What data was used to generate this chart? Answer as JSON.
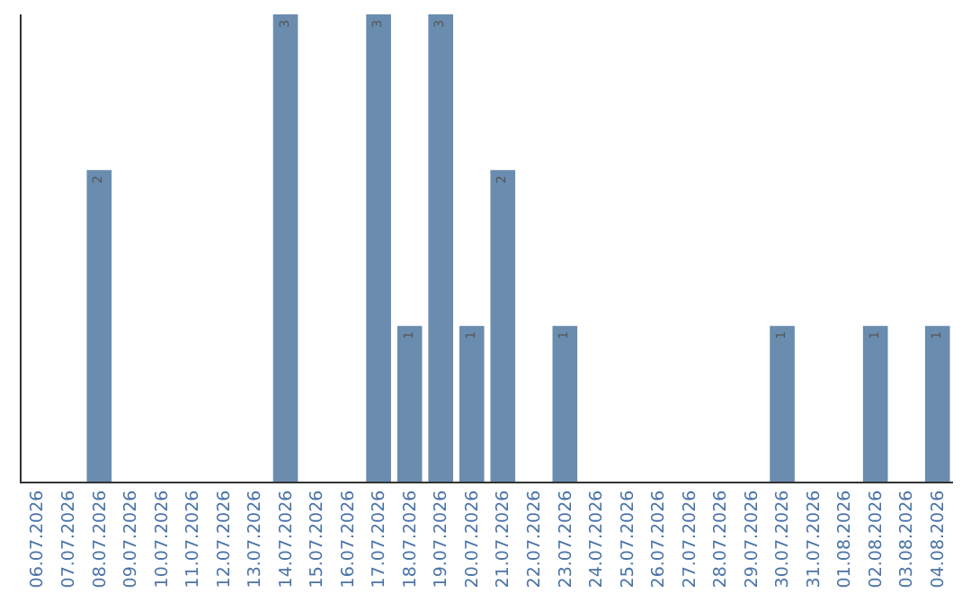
{
  "chart_data": {
    "type": "bar",
    "categories": [
      "06.07.2026",
      "07.07.2026",
      "08.07.2026",
      "09.07.2026",
      "10.07.2026",
      "11.07.2026",
      "12.07.2026",
      "13.07.2026",
      "14.07.2026",
      "15.07.2026",
      "16.07.2026",
      "17.07.2026",
      "18.07.2026",
      "19.07.2026",
      "20.07.2026",
      "21.07.2026",
      "22.07.2026",
      "23.07.2026",
      "24.07.2026",
      "25.07.2026",
      "26.07.2026",
      "27.07.2026",
      "28.07.2026",
      "29.07.2026",
      "30.07.2026",
      "31.07.2026",
      "01.08.2026",
      "02.08.2026",
      "03.08.2026",
      "04.08.2026"
    ],
    "values": [
      0,
      0,
      2,
      0,
      0,
      0,
      0,
      0,
      3,
      0,
      0,
      3,
      1,
      3,
      1,
      2,
      0,
      1,
      0,
      0,
      0,
      0,
      0,
      0,
      1,
      0,
      0,
      1,
      0,
      1
    ],
    "value_labels": [
      null,
      null,
      "2",
      null,
      null,
      null,
      null,
      null,
      "3",
      null,
      null,
      "3",
      "1",
      "3",
      "1",
      "2",
      null,
      "1",
      null,
      null,
      null,
      null,
      null,
      null,
      "1",
      null,
      null,
      "1",
      null,
      "1"
    ],
    "color": "#6a8caf",
    "legend": false
  }
}
